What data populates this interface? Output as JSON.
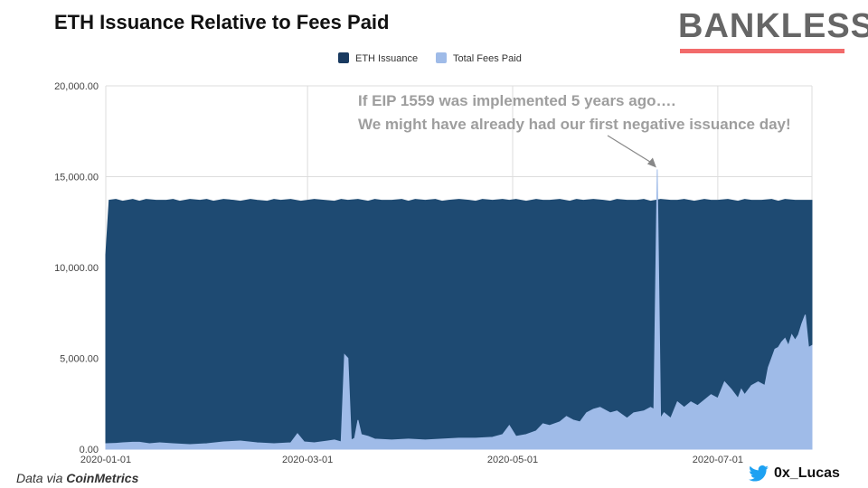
{
  "chart_data": {
    "type": "area",
    "title": "ETH Issuance Relative to Fees Paid",
    "legend": [
      "ETH Issuance",
      "Total Fees Paid"
    ],
    "legend_position": "top-center",
    "xlabel": "",
    "ylabel": "",
    "x_tick_labels": [
      "2020-01-01",
      "2020-03-01",
      "2020-05-01",
      "2020-07-01"
    ],
    "x_tick_days": [
      0,
      60,
      121,
      182
    ],
    "y_ticks": [
      0,
      5000,
      10000,
      15000,
      20000
    ],
    "y_tick_labels": [
      "0.00",
      "5,000.00",
      "10,000.00",
      "15,000.00",
      "20,000.00"
    ],
    "ylim": [
      0,
      20000
    ],
    "x_range_days": [
      0,
      210
    ],
    "grid": true,
    "series": [
      {
        "name": "ETH Issuance",
        "points": [
          [
            0,
            10700
          ],
          [
            1,
            13700
          ],
          [
            3,
            13750
          ],
          [
            5,
            13650
          ],
          [
            8,
            13750
          ],
          [
            10,
            13650
          ],
          [
            12,
            13750
          ],
          [
            15,
            13700
          ],
          [
            18,
            13700
          ],
          [
            20,
            13750
          ],
          [
            22,
            13650
          ],
          [
            25,
            13750
          ],
          [
            28,
            13700
          ],
          [
            30,
            13750
          ],
          [
            32,
            13650
          ],
          [
            35,
            13750
          ],
          [
            38,
            13700
          ],
          [
            40,
            13650
          ],
          [
            43,
            13750
          ],
          [
            45,
            13700
          ],
          [
            48,
            13650
          ],
          [
            50,
            13750
          ],
          [
            52,
            13700
          ],
          [
            55,
            13750
          ],
          [
            58,
            13650
          ],
          [
            60,
            13700
          ],
          [
            62,
            13750
          ],
          [
            65,
            13700
          ],
          [
            68,
            13650
          ],
          [
            70,
            13750
          ],
          [
            72,
            13700
          ],
          [
            75,
            13750
          ],
          [
            78,
            13650
          ],
          [
            80,
            13750
          ],
          [
            82,
            13700
          ],
          [
            85,
            13700
          ],
          [
            88,
            13750
          ],
          [
            90,
            13650
          ],
          [
            92,
            13750
          ],
          [
            95,
            13700
          ],
          [
            98,
            13750
          ],
          [
            100,
            13650
          ],
          [
            102,
            13700
          ],
          [
            105,
            13750
          ],
          [
            108,
            13700
          ],
          [
            110,
            13650
          ],
          [
            112,
            13750
          ],
          [
            115,
            13700
          ],
          [
            118,
            13750
          ],
          [
            120,
            13700
          ],
          [
            122,
            13750
          ],
          [
            125,
            13650
          ],
          [
            128,
            13750
          ],
          [
            130,
            13700
          ],
          [
            132,
            13700
          ],
          [
            135,
            13750
          ],
          [
            138,
            13650
          ],
          [
            140,
            13750
          ],
          [
            142,
            13700
          ],
          [
            145,
            13750
          ],
          [
            148,
            13700
          ],
          [
            150,
            13650
          ],
          [
            152,
            13750
          ],
          [
            155,
            13700
          ],
          [
            158,
            13700
          ],
          [
            160,
            13750
          ],
          [
            162,
            13650
          ],
          [
            165,
            13750
          ],
          [
            168,
            13700
          ],
          [
            170,
            13700
          ],
          [
            172,
            13750
          ],
          [
            175,
            13650
          ],
          [
            178,
            13750
          ],
          [
            180,
            13700
          ],
          [
            182,
            13700
          ],
          [
            185,
            13750
          ],
          [
            188,
            13650
          ],
          [
            190,
            13750
          ],
          [
            192,
            13700
          ],
          [
            195,
            13700
          ],
          [
            198,
            13750
          ],
          [
            200,
            13650
          ],
          [
            202,
            13750
          ],
          [
            205,
            13700
          ],
          [
            208,
            13700
          ],
          [
            210,
            13700
          ]
        ]
      },
      {
        "name": "Total Fees Paid",
        "points": [
          [
            0,
            300
          ],
          [
            3,
            320
          ],
          [
            5,
            350
          ],
          [
            8,
            380
          ],
          [
            10,
            380
          ],
          [
            13,
            300
          ],
          [
            16,
            350
          ],
          [
            20,
            300
          ],
          [
            25,
            250
          ],
          [
            30,
            300
          ],
          [
            35,
            400
          ],
          [
            40,
            450
          ],
          [
            45,
            350
          ],
          [
            50,
            300
          ],
          [
            55,
            350
          ],
          [
            57,
            850
          ],
          [
            59,
            400
          ],
          [
            62,
            350
          ],
          [
            66,
            450
          ],
          [
            68,
            500
          ],
          [
            70,
            400
          ],
          [
            71,
            5200
          ],
          [
            72,
            5000
          ],
          [
            73,
            500
          ],
          [
            74,
            600
          ],
          [
            75,
            1600
          ],
          [
            76,
            800
          ],
          [
            78,
            700
          ],
          [
            80,
            550
          ],
          [
            85,
            500
          ],
          [
            90,
            550
          ],
          [
            95,
            500
          ],
          [
            100,
            550
          ],
          [
            105,
            600
          ],
          [
            110,
            600
          ],
          [
            115,
            650
          ],
          [
            118,
            800
          ],
          [
            120,
            1300
          ],
          [
            122,
            700
          ],
          [
            125,
            800
          ],
          [
            128,
            1000
          ],
          [
            130,
            1400
          ],
          [
            132,
            1300
          ],
          [
            135,
            1500
          ],
          [
            137,
            1800
          ],
          [
            139,
            1600
          ],
          [
            141,
            1500
          ],
          [
            143,
            2000
          ],
          [
            145,
            2200
          ],
          [
            147,
            2300
          ],
          [
            150,
            2000
          ],
          [
            152,
            2100
          ],
          [
            155,
            1700
          ],
          [
            157,
            2000
          ],
          [
            160,
            2100
          ],
          [
            162,
            2300
          ],
          [
            163,
            2200
          ],
          [
            164,
            15400
          ],
          [
            165,
            1700
          ],
          [
            166,
            2000
          ],
          [
            168,
            1700
          ],
          [
            170,
            2600
          ],
          [
            172,
            2300
          ],
          [
            174,
            2600
          ],
          [
            176,
            2400
          ],
          [
            178,
            2700
          ],
          [
            180,
            3000
          ],
          [
            182,
            2800
          ],
          [
            184,
            3700
          ],
          [
            186,
            3300
          ],
          [
            188,
            2800
          ],
          [
            189,
            3300
          ],
          [
            190,
            3000
          ],
          [
            192,
            3500
          ],
          [
            194,
            3700
          ],
          [
            196,
            3500
          ],
          [
            197,
            4500
          ],
          [
            198,
            5000
          ],
          [
            199,
            5500
          ],
          [
            200,
            5600
          ],
          [
            201,
            5900
          ],
          [
            202,
            6100
          ],
          [
            203,
            5700
          ],
          [
            204,
            6300
          ],
          [
            205,
            6000
          ],
          [
            206,
            6300
          ],
          [
            207,
            6900
          ],
          [
            208,
            7400
          ],
          [
            209,
            5600
          ],
          [
            210,
            5700
          ]
        ]
      }
    ],
    "annotation": {
      "line1": "If EIP 1559 was implemented 5 years ago….",
      "line2": "We might have already had our first negative issuance day!",
      "target_day": 164,
      "target_value": 15400
    },
    "colors": {
      "issuance": "#1e4a72",
      "issuance_legend": "#193a60",
      "fees": "#9fbbe8",
      "grid": "#dddddd",
      "annotation_text": "#9e9e9e",
      "brand_underline": "#f26b6b"
    }
  },
  "brand": {
    "name": "BANKLESS"
  },
  "footer": {
    "source_prefix": "Data via ",
    "source_name": "CoinMetrics",
    "twitter_handle": "0x_Lucas",
    "twitter_icon": "twitter-bird-icon"
  }
}
